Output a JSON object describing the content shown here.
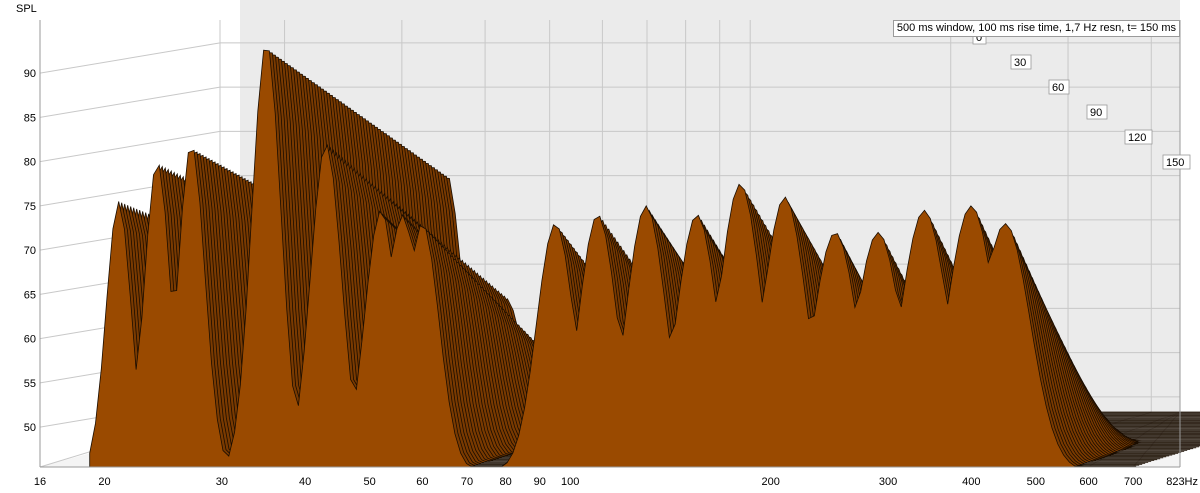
{
  "chart_data": {
    "type": "waterfall",
    "title": "",
    "ylabel": "SPL",
    "xunit": "Hz",
    "y_ticks": [
      50,
      55,
      60,
      65,
      70,
      75,
      80,
      85,
      90
    ],
    "y_range": [
      45.5,
      96
    ],
    "x_range": [
      16,
      823
    ],
    "x_ticks": [
      {
        "v": 16,
        "label": "16"
      },
      {
        "v": 20,
        "label": "20"
      },
      {
        "v": 30,
        "label": "30"
      },
      {
        "v": 40,
        "label": "40"
      },
      {
        "v": 50,
        "label": "50"
      },
      {
        "v": 60,
        "label": "60"
      },
      {
        "v": 70,
        "label": "70"
      },
      {
        "v": 80,
        "label": "80"
      },
      {
        "v": 90,
        "label": "90"
      },
      {
        "v": 100,
        "label": "100"
      },
      {
        "v": 200,
        "label": "200"
      },
      {
        "v": 300,
        "label": "300"
      },
      {
        "v": 400,
        "label": "400"
      },
      {
        "v": 500,
        "label": "500"
      },
      {
        "v": 600,
        "label": "600"
      },
      {
        "v": 700,
        "label": "700"
      },
      {
        "v": 823,
        "label": "823Hz"
      }
    ],
    "time_ticks": [
      "0",
      "30",
      "60",
      "90",
      "120",
      "150"
    ],
    "time_unit": "ms",
    "info": "500 ms window, 100 ms rise time,  1,7 Hz resn, t= 150 ms",
    "peaks_t0": [
      {
        "f": 21,
        "db": 75.5
      },
      {
        "f": 24,
        "db": 80
      },
      {
        "f": 27,
        "db": 82
      },
      {
        "f": 35,
        "db": 93.5
      },
      {
        "f": 43,
        "db": 82
      },
      {
        "f": 52,
        "db": 74.5
      },
      {
        "f": 56,
        "db": 74
      },
      {
        "f": 60,
        "db": 73
      },
      {
        "f": 95,
        "db": 73
      },
      {
        "f": 110,
        "db": 74
      },
      {
        "f": 130,
        "db": 75
      },
      {
        "f": 155,
        "db": 74
      },
      {
        "f": 180,
        "db": 77.5
      },
      {
        "f": 210,
        "db": 76
      },
      {
        "f": 250,
        "db": 72
      },
      {
        "f": 290,
        "db": 72
      },
      {
        "f": 340,
        "db": 74.5
      },
      {
        "f": 400,
        "db": 75
      },
      {
        "f": 450,
        "db": 73
      }
    ],
    "colors": {
      "fill": "#9a4a00",
      "line": "#1a0d00",
      "grid": "#c8c8c8",
      "floor": "#f4f4f4",
      "wall": "#ebebeb",
      "frame": "#9a9a9a"
    }
  }
}
